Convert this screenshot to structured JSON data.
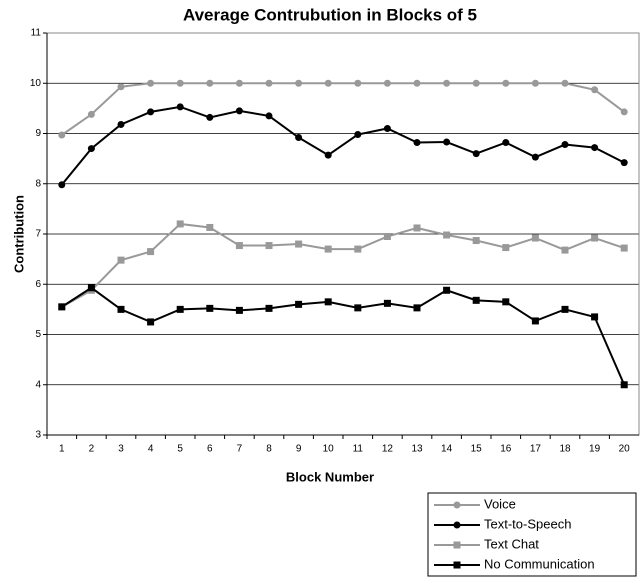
{
  "chart_data": {
    "type": "line",
    "title": "Average Contrubution in Blocks of 5",
    "x_label": "Block Number",
    "y_label": "Contribution",
    "categories": [
      "1",
      "2",
      "3",
      "4",
      "5",
      "6",
      "7",
      "8",
      "9",
      "10",
      "11",
      "12",
      "13",
      "14",
      "15",
      "16",
      "17",
      "18",
      "19",
      "20"
    ],
    "series": [
      {
        "name": "Voice",
        "color": "#999999",
        "marker": "circle",
        "values": [
          8.97,
          9.38,
          9.93,
          10,
          10,
          10,
          10,
          10,
          10,
          10,
          10,
          10,
          10,
          10,
          10,
          10,
          10,
          10,
          9.87,
          9.43
        ]
      },
      {
        "name": "Text-to-Speech",
        "color": "#000000",
        "marker": "circle",
        "values": [
          7.98,
          8.7,
          9.18,
          9.43,
          9.53,
          9.32,
          9.45,
          9.35,
          8.92,
          8.57,
          8.98,
          9.1,
          8.82,
          8.83,
          8.6,
          8.82,
          8.53,
          8.78,
          8.72,
          8.42
        ]
      },
      {
        "name": "Text Chat",
        "color": "#999999",
        "marker": "square",
        "values": [
          5.55,
          5.88,
          6.48,
          6.65,
          7.2,
          7.13,
          6.77,
          6.77,
          6.8,
          6.7,
          6.7,
          6.95,
          7.12,
          6.98,
          6.87,
          6.73,
          6.92,
          6.68,
          6.92,
          6.72
        ]
      },
      {
        "name": "No Communication",
        "color": "#000000",
        "marker": "square",
        "values": [
          5.55,
          5.93,
          5.5,
          5.25,
          5.5,
          5.52,
          5.48,
          5.52,
          5.6,
          5.65,
          5.53,
          5.62,
          5.53,
          5.88,
          5.68,
          5.65,
          5.27,
          5.5,
          5.35,
          4.0
        ]
      }
    ],
    "ylim": [
      3,
      11
    ],
    "yticks": [
      3,
      4,
      5,
      6,
      7,
      8,
      9,
      10,
      11
    ],
    "grid": true,
    "legend": "bottom-right"
  }
}
